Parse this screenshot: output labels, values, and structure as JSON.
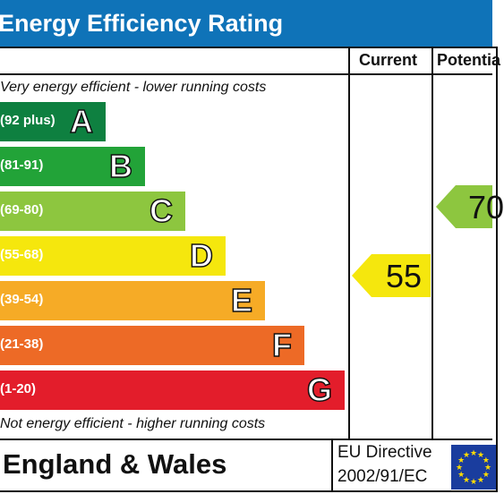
{
  "title": "Energy Efficiency Rating",
  "columns": {
    "current": "Current",
    "potential": "Potentia"
  },
  "notes": {
    "top": "Very energy efficient - lower running costs",
    "bottom": "Not energy efficient - higher running costs"
  },
  "bands": [
    {
      "range": "(92 plus)",
      "letter": "A",
      "color": "#0e8040"
    },
    {
      "range": "(81-91)",
      "letter": "B",
      "color": "#22a338"
    },
    {
      "range": "(69-80)",
      "letter": "C",
      "color": "#8dc63f"
    },
    {
      "range": "(55-68)",
      "letter": "D",
      "color": "#f5e70d"
    },
    {
      "range": "(39-54)",
      "letter": "E",
      "color": "#f6ab26"
    },
    {
      "range": "(21-38)",
      "letter": "F",
      "color": "#ed6a26"
    },
    {
      "range": "(1-20)",
      "letter": "G",
      "color": "#e31d2b"
    }
  ],
  "ratings": {
    "current": {
      "value": "55",
      "band": "D",
      "color": "#f5e70d"
    },
    "potential": {
      "value": "70",
      "band": "C",
      "color": "#8dc63f"
    }
  },
  "footer": {
    "region": "England & Wales",
    "directive_line1": "EU Directive",
    "directive_line2": "2002/91/EC"
  },
  "icons": {
    "flag": "eu-flag-icon"
  }
}
